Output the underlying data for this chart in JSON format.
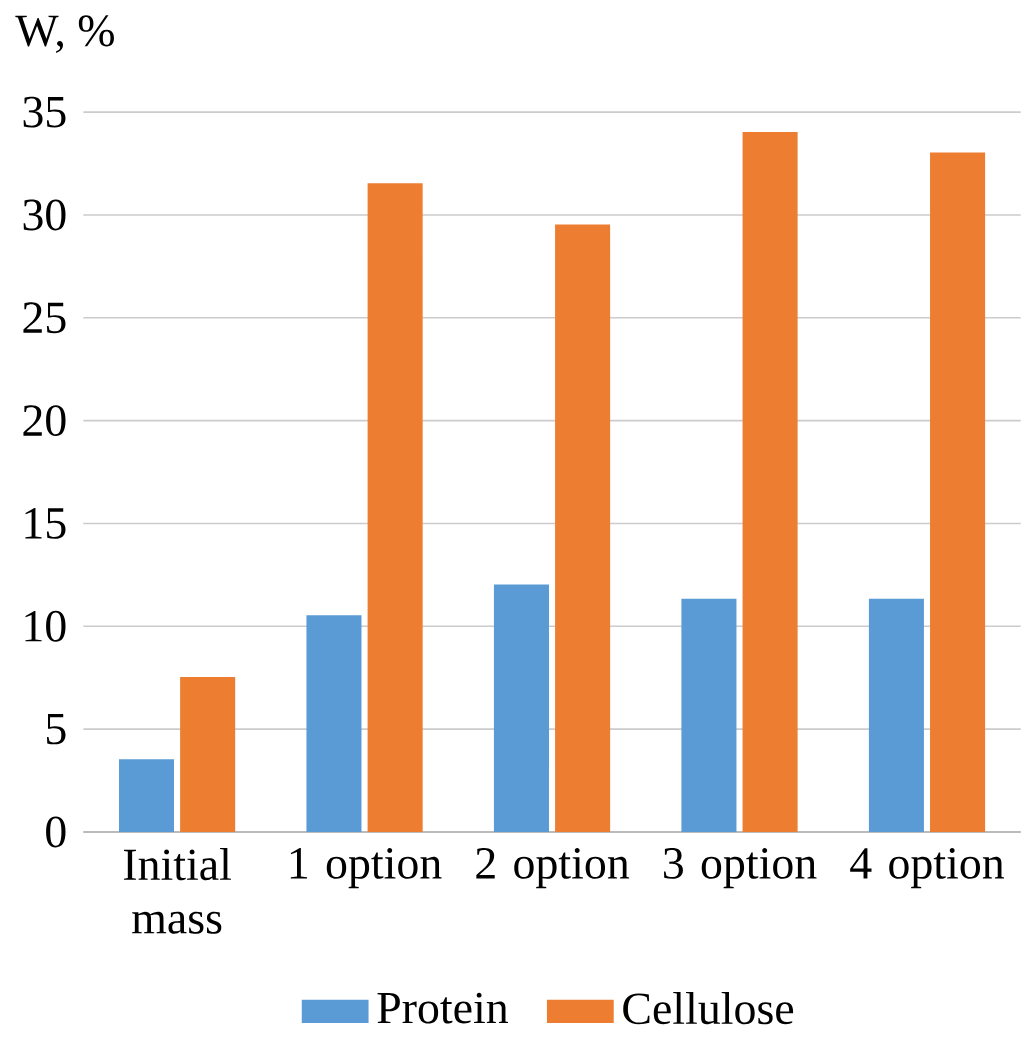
{
  "chart_data": {
    "type": "bar",
    "ylabel": "W, %",
    "categories": [
      "Initial mass",
      "1 option",
      "2 option",
      "3 option",
      "4 option"
    ],
    "series": [
      {
        "name": "Protein",
        "color": "#5b9bd5",
        "values": [
          3.5,
          10.5,
          12,
          11.3,
          11.3
        ]
      },
      {
        "name": "Cellulose",
        "color": "#ed7d31",
        "values": [
          7.5,
          31.5,
          29.5,
          34,
          33
        ]
      }
    ],
    "ylim": [
      0,
      35
    ],
    "yticks": [
      0,
      5,
      10,
      15,
      20,
      25,
      30,
      35
    ],
    "grid": "y",
    "legend": "bottom"
  }
}
